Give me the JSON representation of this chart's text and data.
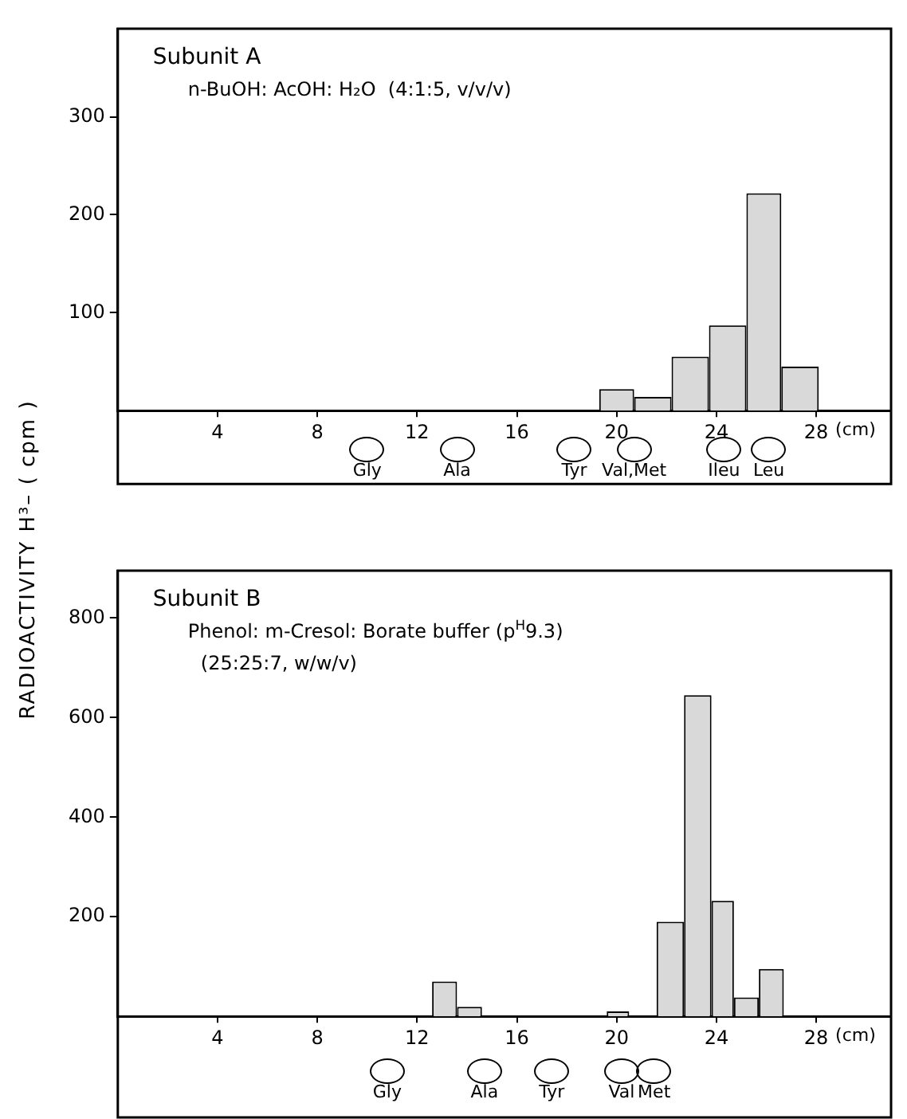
{
  "chart_data": [
    {
      "type": "histogram",
      "title": "Subunit A",
      "subtitle": "n-BuOH: AcOH: H₂O  (4:1:5, v/v/v)",
      "ylabel": "RADIOACTIVITY   H³– ( cpm )",
      "xlabel": "(cm)",
      "bins": [
        19.3,
        20.7,
        22.2,
        23.7,
        25.2,
        26.6,
        28.1
      ],
      "values": [
        22,
        14,
        55,
        87,
        222,
        45
      ],
      "color": "#d9d9d9",
      "xlim": [
        0,
        31
      ],
      "xticks": [
        4,
        8,
        12,
        16,
        20,
        24,
        28
      ],
      "ylim": [
        0,
        390
      ],
      "yticks": [
        100,
        200,
        300
      ],
      "annotations": [
        "Gly",
        "Ala",
        "Tyr",
        "Val,Met",
        "Ileu",
        "Leu"
      ]
    },
    {
      "type": "histogram",
      "title": "Subunit B",
      "subtitle": "Phenol: m-Cresol: Borate buffer (p$^{H}$9.3)",
      "xlabel": "(cm)",
      "bins": [
        12.6,
        13.6,
        14.6,
        19.6,
        20.5,
        21.6,
        22.7,
        23.8,
        24.7,
        25.7,
        26.7
      ],
      "values": [
        70,
        19,
        0,
        10,
        0,
        190,
        645,
        232,
        38,
        95
      ],
      "color": "#d9d9d9",
      "xlim": [
        0,
        31
      ],
      "xticks": [
        4,
        8,
        12,
        16,
        20,
        24,
        28
      ],
      "ylim": [
        0,
        895
      ],
      "yticks": [
        200,
        400,
        600,
        800
      ],
      "annotations": [
        "(25:25:7, w/w/v)",
        "Gly",
        "Ala",
        "Tyr",
        "Val",
        "Met"
      ]
    }
  ]
}
